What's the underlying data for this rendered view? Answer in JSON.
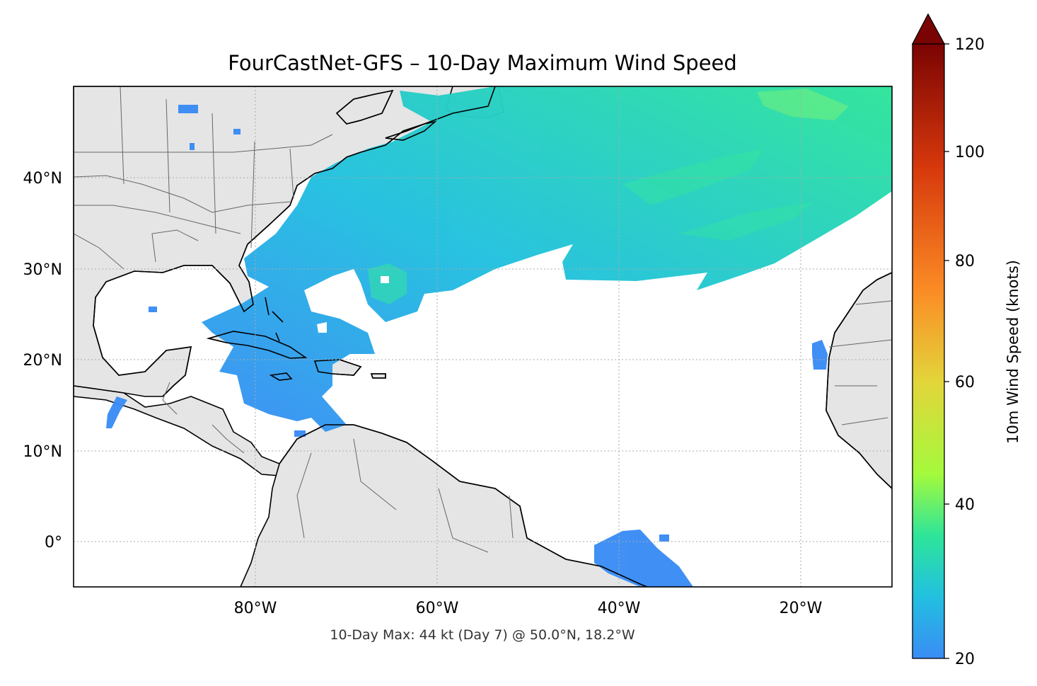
{
  "title": "FourCastNet-GFS – 10-Day Maximum Wind Speed",
  "footer": "10-Day Max: 44 kt (Day 7) @ 50.0°N, 18.2°W",
  "lat_ticks": [
    "40°N",
    "30°N",
    "20°N",
    "10°N",
    "0°"
  ],
  "lon_ticks": [
    "80°W",
    "60°W",
    "40°W",
    "20°W"
  ],
  "colorbar": {
    "label": "10m Wind Speed (knots)",
    "ticks": [
      "20",
      "40",
      "60",
      "80",
      "100",
      "120"
    ],
    "extend": "max",
    "colormap": "turbo",
    "range": [
      20,
      120
    ]
  },
  "map": {
    "extent_lon": [
      -100,
      -10
    ],
    "extent_lat": [
      -5,
      50
    ],
    "land_color": "#e5e5e5",
    "coast_color": "#000000",
    "border_color": "#666666",
    "gridlines": "dotted"
  },
  "colors": {
    "wind_20": "#3a8cf5",
    "wind_30": "#22c0e0",
    "wind_40": "#2ee59a",
    "wind_50": "#a4fa3c",
    "wind_60": "#e3d53a",
    "wind_80": "#fb8b25",
    "wind_100": "#d6380c",
    "wind_120": "#7a0403"
  },
  "max_point": {
    "wind_kt": 44,
    "day": 7,
    "lat": 50.0,
    "lon": -18.2
  }
}
